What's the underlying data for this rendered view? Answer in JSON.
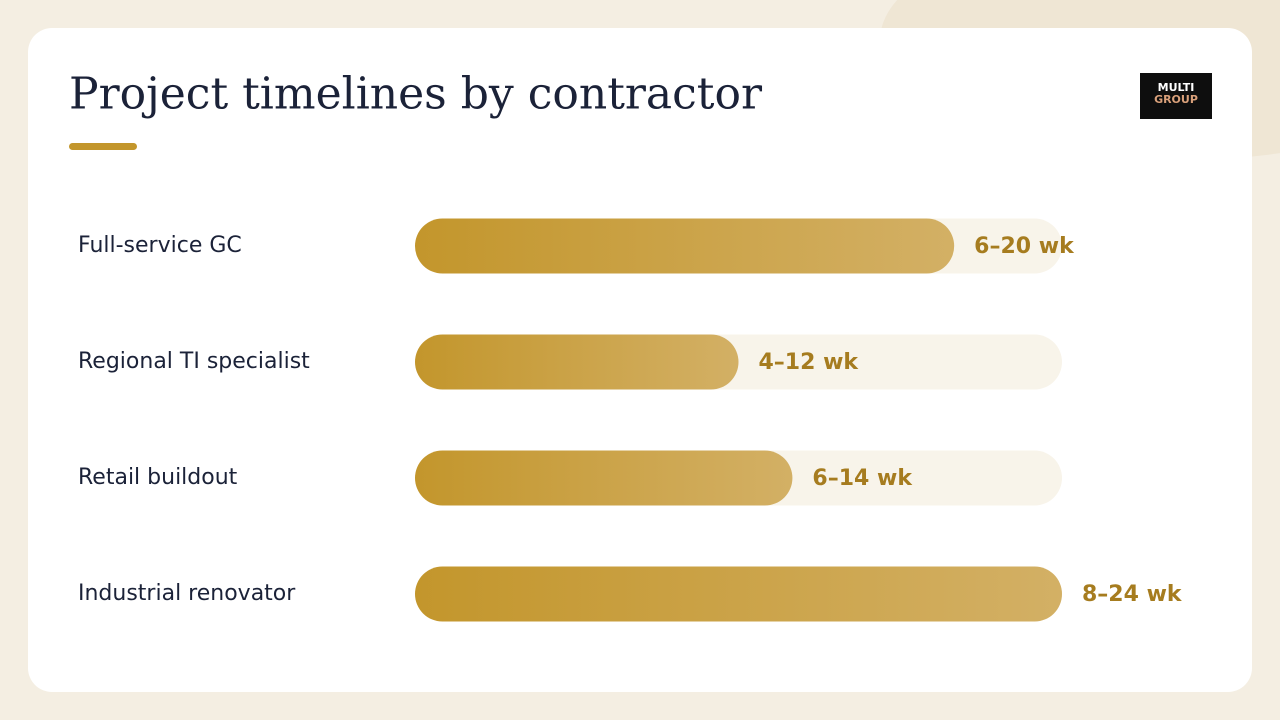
{
  "chart_data": {
    "type": "bar",
    "orientation": "horizontal",
    "title": "Project timelines by contractor",
    "categories": [
      "Full-service GC",
      "Regional TI specialist",
      "Retail buildout",
      "Industrial renovator"
    ],
    "values": [
      20,
      12,
      14,
      24
    ],
    "value_labels": [
      "6–20 wk",
      "4–12 wk",
      "6–14 wk",
      "8–24 wk"
    ],
    "color": "#c3962c",
    "xlim": [
      0,
      24
    ]
  },
  "logo": {
    "line1": "MULTI",
    "line2": "GROUP"
  }
}
